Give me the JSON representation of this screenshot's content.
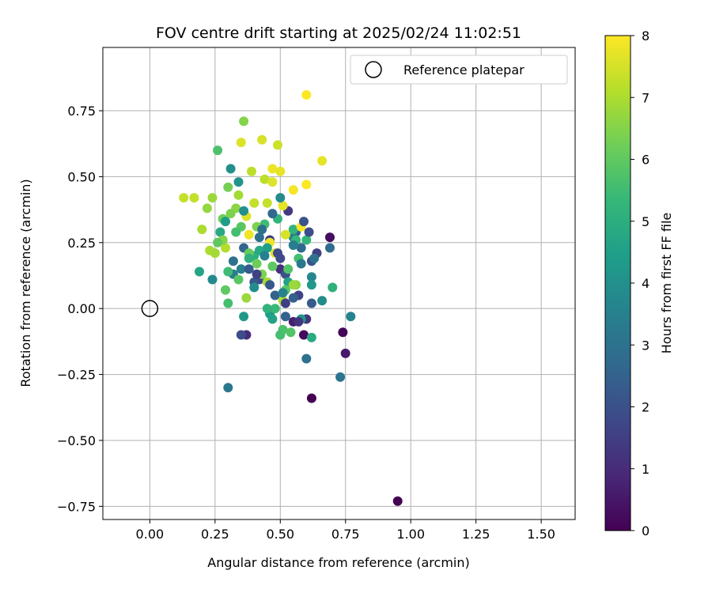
{
  "chart_data": {
    "type": "scatter",
    "title": "FOV centre drift starting at 2025/02/24 11:02:51",
    "xlabel": "Angular distance from reference (arcmin)",
    "ylabel": "Rotation from reference (arcmin)",
    "xlim": [
      -0.18,
      1.63
    ],
    "ylim": [
      -0.8,
      0.99
    ],
    "x_ticks": [
      {
        "value": 0.0,
        "label": "0.00"
      },
      {
        "value": 0.25,
        "label": "0.25"
      },
      {
        "value": 0.5,
        "label": "0.50"
      },
      {
        "value": 0.75,
        "label": "0.75"
      },
      {
        "value": 1.0,
        "label": "1.00"
      },
      {
        "value": 1.25,
        "label": "1.25"
      },
      {
        "value": 1.5,
        "label": "1.50"
      }
    ],
    "y_ticks": [
      {
        "value": -0.75,
        "label": "−0.75"
      },
      {
        "value": -0.5,
        "label": "−0.50"
      },
      {
        "value": -0.25,
        "label": "−0.25"
      },
      {
        "value": 0.0,
        "label": "0.00"
      },
      {
        "value": 0.25,
        "label": "0.25"
      },
      {
        "value": 0.5,
        "label": "0.50"
      },
      {
        "value": 0.75,
        "label": "0.75"
      }
    ],
    "grid": true,
    "legend": {
      "placement": "top-right",
      "entries": [
        "Reference platepar"
      ]
    },
    "reference_point": {
      "x": 0.0,
      "y": 0.0,
      "style": "open-circle"
    },
    "colorbar": {
      "label": "Hours from first FF file",
      "range": [
        0,
        8
      ],
      "ticks": [
        "0",
        "1",
        "2",
        "3",
        "4",
        "5",
        "6",
        "7",
        "8"
      ],
      "colormap": "viridis",
      "colormap_stops": [
        "#440154",
        "#482878",
        "#3e4989",
        "#31688e",
        "#26828e",
        "#1f9e89",
        "#35b779",
        "#6ece58",
        "#b5de2b",
        "#fde725"
      ]
    },
    "points": [
      [
        0.95,
        -0.73,
        0.0
      ],
      [
        0.62,
        -0.34,
        0.0
      ],
      [
        0.74,
        -0.09,
        0.1
      ],
      [
        0.59,
        -0.1,
        0.2
      ],
      [
        0.69,
        0.27,
        0.3
      ],
      [
        0.75,
        -0.17,
        0.6
      ],
      [
        0.55,
        -0.05,
        0.7
      ],
      [
        0.37,
        -0.1,
        1.0
      ],
      [
        0.5,
        0.15,
        1.1
      ],
      [
        0.6,
        -0.04,
        1.2
      ],
      [
        0.53,
        0.37,
        1.3
      ],
      [
        0.46,
        0.26,
        1.4
      ],
      [
        0.64,
        0.21,
        1.5
      ],
      [
        0.57,
        0.05,
        1.6
      ],
      [
        0.42,
        0.11,
        1.7
      ],
      [
        0.5,
        0.19,
        1.8
      ],
      [
        0.35,
        -0.1,
        1.9
      ],
      [
        0.52,
        0.13,
        2.0
      ],
      [
        0.62,
        0.18,
        2.1
      ],
      [
        0.4,
        0.1,
        2.2
      ],
      [
        0.62,
        0.02,
        2.3
      ],
      [
        0.56,
        0.29,
        2.4
      ],
      [
        0.48,
        0.05,
        2.5
      ],
      [
        0.36,
        0.23,
        2.6
      ],
      [
        0.58,
        0.23,
        2.7
      ],
      [
        0.69,
        0.23,
        2.8
      ],
      [
        0.42,
        0.27,
        2.9
      ],
      [
        0.6,
        -0.19,
        3.0
      ],
      [
        0.73,
        -0.26,
        3.1
      ],
      [
        0.3,
        -0.3,
        3.2
      ],
      [
        0.32,
        0.13,
        3.3
      ],
      [
        0.55,
        0.27,
        3.4
      ],
      [
        0.35,
        0.15,
        3.5
      ],
      [
        0.77,
        -0.03,
        3.6
      ],
      [
        0.62,
        0.12,
        3.7
      ],
      [
        0.24,
        0.11,
        3.8
      ],
      [
        0.66,
        0.03,
        3.9
      ],
      [
        0.31,
        0.53,
        4.0
      ],
      [
        0.34,
        0.48,
        4.1
      ],
      [
        0.58,
        -0.04,
        4.2
      ],
      [
        0.36,
        -0.03,
        4.3
      ],
      [
        0.46,
        -0.02,
        4.4
      ],
      [
        0.5,
        -0.1,
        4.5
      ],
      [
        0.53,
        0.1,
        4.6
      ],
      [
        0.19,
        0.14,
        4.7
      ],
      [
        0.27,
        0.29,
        4.8
      ],
      [
        0.62,
        -0.11,
        4.9
      ],
      [
        0.4,
        0.2,
        5.0
      ],
      [
        0.7,
        0.08,
        5.1
      ],
      [
        0.55,
        0.3,
        5.2
      ],
      [
        0.6,
        0.26,
        5.3
      ],
      [
        0.48,
        0.0,
        5.4
      ],
      [
        0.44,
        0.32,
        5.5
      ],
      [
        0.3,
        0.02,
        5.6
      ],
      [
        0.26,
        0.6,
        5.7
      ],
      [
        0.53,
        0.15,
        5.8
      ],
      [
        0.34,
        0.11,
        5.9
      ],
      [
        0.29,
        0.07,
        6.0
      ],
      [
        0.38,
        0.21,
        6.1
      ],
      [
        0.28,
        0.34,
        6.2
      ],
      [
        0.3,
        0.46,
        6.3
      ],
      [
        0.41,
        0.31,
        6.4
      ],
      [
        0.36,
        0.71,
        6.5
      ],
      [
        0.56,
        0.09,
        6.6
      ],
      [
        0.22,
        0.38,
        6.7
      ],
      [
        0.24,
        0.42,
        6.8
      ],
      [
        0.34,
        0.43,
        6.9
      ],
      [
        0.2,
        0.3,
        7.0
      ],
      [
        0.29,
        0.23,
        7.1
      ],
      [
        0.39,
        0.52,
        7.2
      ],
      [
        0.45,
        0.4,
        7.3
      ],
      [
        0.13,
        0.42,
        7.3
      ],
      [
        0.17,
        0.42,
        7.3
      ],
      [
        0.49,
        0.62,
        7.4
      ],
      [
        0.43,
        0.64,
        7.5
      ],
      [
        0.35,
        0.63,
        7.6
      ],
      [
        0.66,
        0.56,
        7.7
      ],
      [
        0.38,
        0.28,
        7.8
      ],
      [
        0.58,
        0.31,
        7.9
      ],
      [
        0.6,
        0.81,
        8.0
      ],
      [
        0.6,
        0.47,
        8.0
      ],
      [
        0.55,
        0.45,
        7.9
      ],
      [
        0.47,
        0.53,
        7.8
      ],
      [
        0.5,
        0.52,
        7.7
      ],
      [
        0.51,
        0.39,
        7.7
      ],
      [
        0.46,
        0.25,
        7.8
      ],
      [
        0.48,
        0.21,
        7.6
      ],
      [
        0.52,
        0.28,
        7.5
      ],
      [
        0.37,
        0.35,
        7.6
      ],
      [
        0.4,
        0.4,
        7.3
      ],
      [
        0.44,
        0.49,
        7.2
      ],
      [
        0.33,
        0.38,
        6.6
      ],
      [
        0.47,
        0.48,
        7.6
      ],
      [
        0.23,
        0.22,
        7.0
      ],
      [
        0.25,
        0.21,
        6.9
      ],
      [
        0.28,
        0.26,
        6.5
      ],
      [
        0.37,
        0.04,
        6.8
      ],
      [
        0.45,
        0.1,
        6.9
      ],
      [
        0.51,
        0.03,
        7.0
      ],
      [
        0.55,
        0.09,
        6.8
      ],
      [
        0.41,
        0.17,
        6.2
      ],
      [
        0.31,
        0.36,
        6.4
      ],
      [
        0.26,
        0.25,
        6.0
      ],
      [
        0.35,
        0.31,
        5.9
      ],
      [
        0.43,
        0.13,
        6.4
      ],
      [
        0.47,
        0.16,
        6.0
      ],
      [
        0.33,
        0.29,
        5.6
      ],
      [
        0.3,
        0.14,
        5.5
      ],
      [
        0.57,
        0.19,
        5.6
      ],
      [
        0.49,
        0.34,
        5.2
      ],
      [
        0.38,
        0.19,
        5.1
      ],
      [
        0.45,
        0.0,
        5.2
      ],
      [
        0.56,
        0.26,
        5.3
      ],
      [
        0.51,
        -0.08,
        5.7
      ],
      [
        0.5,
        -0.1,
        5.6
      ],
      [
        0.52,
        0.07,
        5.9
      ],
      [
        0.54,
        -0.09,
        5.8
      ],
      [
        0.42,
        0.22,
        4.8
      ],
      [
        0.47,
        -0.04,
        4.6
      ],
      [
        0.45,
        0.23,
        4.5
      ],
      [
        0.62,
        0.09,
        4.3
      ],
      [
        0.29,
        0.33,
        4.4
      ],
      [
        0.36,
        0.37,
        4.0
      ],
      [
        0.4,
        0.08,
        3.9
      ],
      [
        0.5,
        0.42,
        3.8
      ],
      [
        0.51,
        0.06,
        3.6
      ],
      [
        0.55,
        0.24,
        3.4
      ],
      [
        0.58,
        0.17,
        3.2
      ],
      [
        0.44,
        0.2,
        3.5
      ],
      [
        0.63,
        0.19,
        3.0
      ],
      [
        0.32,
        0.18,
        3.0
      ],
      [
        0.43,
        0.3,
        2.9
      ],
      [
        0.47,
        0.36,
        2.7
      ],
      [
        0.52,
        -0.03,
        2.5
      ],
      [
        0.55,
        0.04,
        2.4
      ],
      [
        0.38,
        0.15,
        2.3
      ],
      [
        0.46,
        0.09,
        2.2
      ],
      [
        0.59,
        0.33,
        2.1
      ],
      [
        0.61,
        0.29,
        1.9
      ],
      [
        0.49,
        0.21,
        1.8
      ],
      [
        0.41,
        0.13,
        1.6
      ],
      [
        0.52,
        0.02,
        1.5
      ],
      [
        0.57,
        -0.05,
        1.2
      ]
    ]
  }
}
